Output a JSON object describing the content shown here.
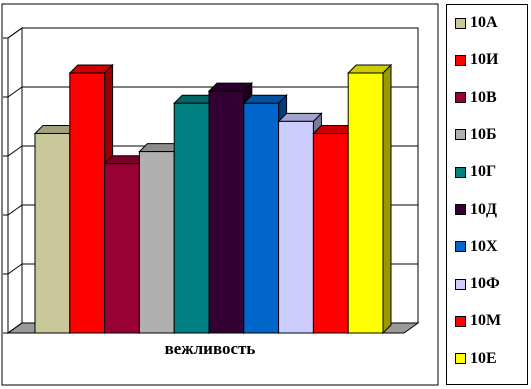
{
  "chart_data": {
    "type": "bar",
    "style": "3d",
    "categories": [
      "вежливость"
    ],
    "xlabel": "вежливость",
    "ylim": [
      0,
      5
    ],
    "grid": true,
    "legend_position": "right",
    "series": [
      {
        "name": "10А",
        "color": "#C8C89A",
        "values": [
          3.3
        ]
      },
      {
        "name": "10И",
        "color": "#FF0000",
        "values": [
          4.3
        ]
      },
      {
        "name": "10В",
        "color": "#990033",
        "values": [
          2.8
        ]
      },
      {
        "name": "10Б",
        "color": "#B0B0B0",
        "values": [
          3.0
        ]
      },
      {
        "name": "10Г",
        "color": "#008080",
        "values": [
          3.8
        ]
      },
      {
        "name": "10Д",
        "color": "#330033",
        "values": [
          4.0
        ]
      },
      {
        "name": "10Х",
        "color": "#0066CC",
        "values": [
          3.8
        ]
      },
      {
        "name": "10Ф",
        "color": "#CCCCFF",
        "values": [
          3.5
        ]
      },
      {
        "name": "10М",
        "color": "#FF0000",
        "values": [
          3.3
        ]
      },
      {
        "name": "10Е",
        "color": "#FFFF00",
        "values": [
          4.3
        ]
      }
    ]
  }
}
